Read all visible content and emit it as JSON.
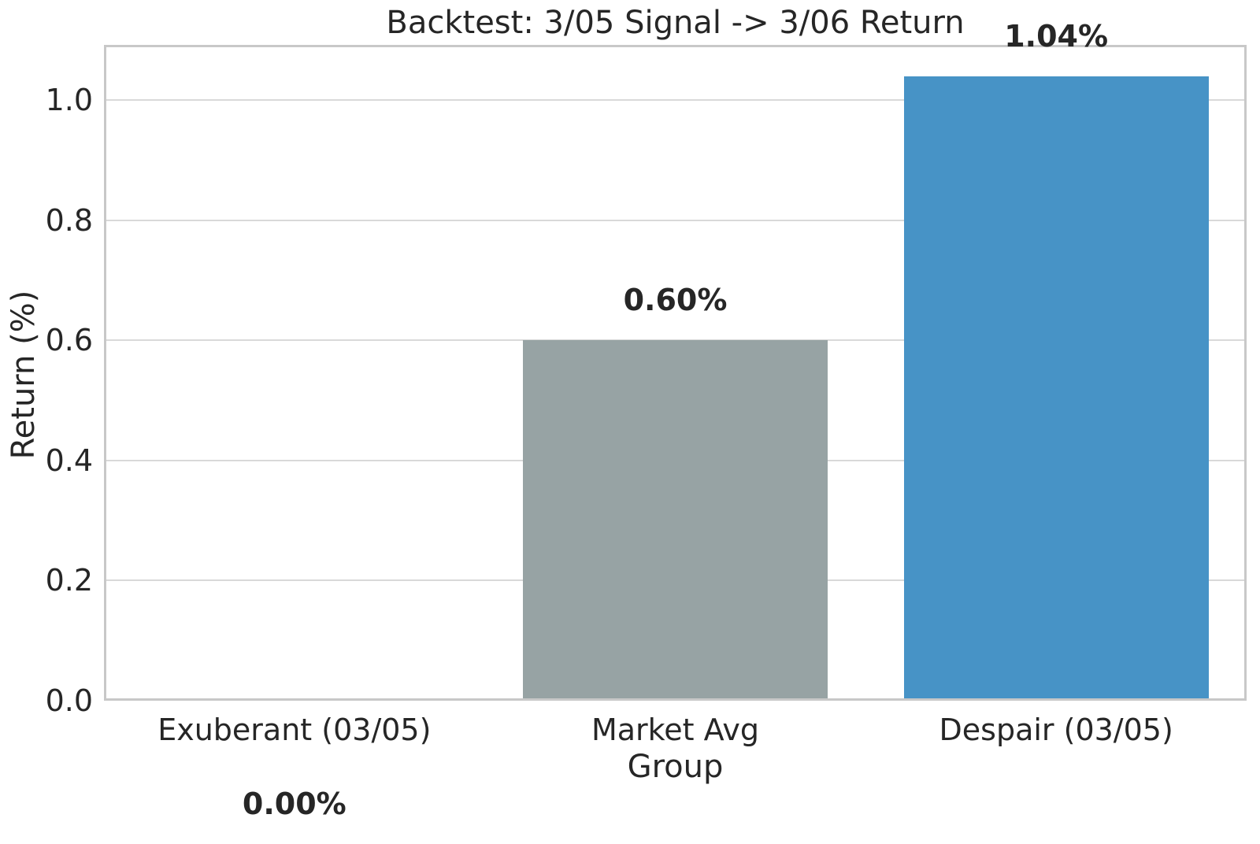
{
  "figure": {
    "background_color": "#ffffff",
    "text_color": "#262626",
    "grid_color": "#d9d9d9",
    "spine_color": "#c8c8c8"
  },
  "chart_data": {
    "type": "bar",
    "title": "Backtest: 3/05 Signal -> 3/06 Return",
    "xlabel": "Group",
    "ylabel": "Return (%)",
    "categories": [
      "Exuberant (03/05)",
      "Market Avg",
      "Despair (03/05)"
    ],
    "values": [
      0.0,
      0.6,
      1.04
    ],
    "value_labels": [
      "0.00%",
      "0.60%",
      "1.04%"
    ],
    "bar_colors": [
      "#4793c6",
      "#97a3a4",
      "#4793c6"
    ],
    "yticks": [
      0.0,
      0.2,
      0.4,
      0.6,
      0.8,
      1.0
    ],
    "ytick_labels": [
      "0.0",
      "0.2",
      "0.4",
      "0.6",
      "0.8",
      "1.0"
    ],
    "ylim": [
      0,
      1.092
    ],
    "grid": true,
    "legend": "none",
    "bar_width_frac": 0.8
  }
}
